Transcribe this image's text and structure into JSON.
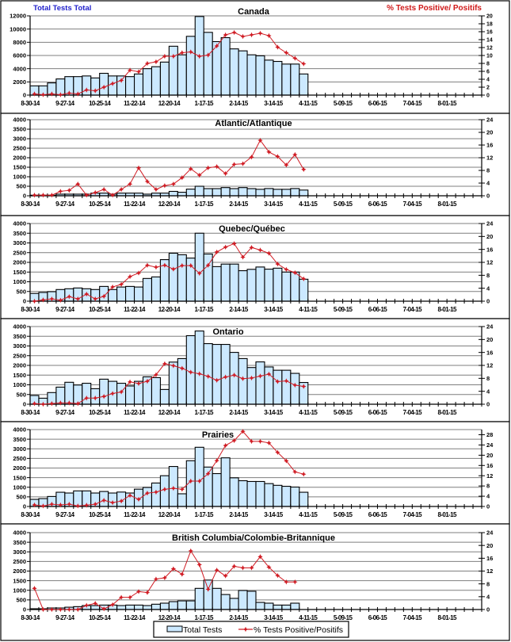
{
  "colors": {
    "bar_fill": "#CCE9FF",
    "bar_stroke": "#000000",
    "line": "#D01C24",
    "gridline": "#7F7F7F",
    "left_axis_title": "#1F1FCC",
    "right_axis_title": "#D01A1A"
  },
  "chart_data": [
    {
      "type": "bar+line",
      "title": "Canada",
      "y_left_label": "Total Tests Total",
      "y_right_label": "% Tests Positive/ Positifs",
      "x_tick_labels": [
        "8-30-14",
        "9-27-14",
        "10-25-14",
        "11-22-14",
        "12-20-14",
        "1-17-15",
        "2-14-15",
        "3-14-15",
        "4-11-15",
        "5-09-15",
        "6-06-15",
        "7-04-15",
        "8-01-15"
      ],
      "x_tick_label_step_weeks": 4,
      "xlim_weeks": [
        0,
        52
      ],
      "ylim_left": [
        0,
        12000
      ],
      "y_left_ticks": [
        0,
        2000,
        4000,
        6000,
        8000,
        10000,
        12000
      ],
      "ylim_right": [
        0,
        20
      ],
      "y_right_ticks": [
        0,
        2,
        4,
        6,
        8,
        10,
        12,
        14,
        16,
        18,
        20
      ],
      "grid": true,
      "series": [
        {
          "type": "bar",
          "axis": "left",
          "values": [
            1400,
            1400,
            1850,
            2450,
            2800,
            2800,
            2900,
            2600,
            3300,
            2900,
            2900,
            2800,
            3200,
            4000,
            4300,
            5000,
            7400,
            6100,
            8900,
            11900,
            9500,
            8100,
            8700,
            7000,
            6700,
            6100,
            5950,
            5300,
            5100,
            4700,
            4700,
            3200
          ]
        },
        {
          "type": "line",
          "axis": "right",
          "values": [
            0.3,
            0.1,
            0.3,
            0.1,
            0.5,
            0.3,
            1.3,
            1.1,
            2.0,
            2.9,
            3.7,
            6.3,
            5.9,
            8.0,
            8.4,
            9.8,
            9.8,
            10.7,
            10.9,
            9.8,
            10.1,
            12.4,
            15.2,
            15.8,
            14.8,
            15.2,
            15.6,
            15.0,
            12.1,
            10.7,
            9.3,
            7.9
          ]
        }
      ]
    },
    {
      "type": "bar+line",
      "title": "Atlantic/Atlantique",
      "x_tick_labels": [
        "8-30-14",
        "9-27-14",
        "10-25-14",
        "11-22-14",
        "12-20-14",
        "1-17-15",
        "2-14-15",
        "3-14-15",
        "4-11-15",
        "5-09-15",
        "6-06-15",
        "7-04-15",
        "8-01-15"
      ],
      "x_tick_label_step_weeks": 4,
      "xlim_weeks": [
        0,
        52
      ],
      "ylim_left": [
        0,
        4000
      ],
      "y_left_ticks": [
        0,
        500,
        1000,
        1500,
        2000,
        2500,
        3000,
        3500,
        4000
      ],
      "ylim_right": [
        0,
        24
      ],
      "y_right_ticks": [
        0,
        4,
        8,
        12,
        16,
        20,
        24
      ],
      "grid": true,
      "series": [
        {
          "type": "bar",
          "axis": "left",
          "values": [
            30,
            30,
            30,
            85,
            85,
            85,
            85,
            140,
            140,
            85,
            140,
            140,
            140,
            85,
            140,
            140,
            230,
            185,
            350,
            500,
            375,
            375,
            430,
            375,
            430,
            375,
            340,
            380,
            340,
            340,
            380,
            300
          ]
        },
        {
          "type": "line",
          "axis": "right",
          "values": [
            0.2,
            0.2,
            0.2,
            1.4,
            1.7,
            3.7,
            0.2,
            1.0,
            2.0,
            0.2,
            2.0,
            3.7,
            8.8,
            4.5,
            2.0,
            3.2,
            3.7,
            5.7,
            8.5,
            6.5,
            8.8,
            9.2,
            7.0,
            9.9,
            10.1,
            12.2,
            17.5,
            13.8,
            12.4,
            9.7,
            13.0,
            8.3
          ]
        }
      ]
    },
    {
      "type": "bar+line",
      "title": "Quebec/Québec",
      "x_tick_labels": [
        "8-30-14",
        "9-27-14",
        "10-25-14",
        "11-22-14",
        "12-20-14",
        "1-17-15",
        "2-14-15",
        "3-14-15",
        "4-11-15",
        "5-09-15",
        "6-06-15",
        "7-04-15",
        "8-01-15"
      ],
      "x_tick_label_step_weeks": 4,
      "xlim_weeks": [
        0,
        52
      ],
      "ylim_left": [
        0,
        4000
      ],
      "y_left_ticks": [
        0,
        500,
        1000,
        1500,
        2000,
        2500,
        3000,
        3500,
        4000
      ],
      "ylim_right": [
        0,
        24
      ],
      "y_right_ticks": [
        0,
        4,
        8,
        12,
        16,
        20,
        24
      ],
      "grid": true,
      "series": [
        {
          "type": "bar",
          "axis": "left",
          "values": [
            400,
            450,
            490,
            600,
            640,
            680,
            640,
            600,
            760,
            600,
            730,
            760,
            730,
            1170,
            1250,
            2140,
            2470,
            2390,
            2220,
            3500,
            2430,
            1780,
            1910,
            1910,
            1570,
            1640,
            1760,
            1650,
            1700,
            1500,
            1500,
            1130
          ]
        },
        {
          "type": "line",
          "axis": "right",
          "values": [
            0.0,
            0.4,
            0.7,
            0.3,
            1.4,
            0.7,
            2.2,
            0.7,
            1.5,
            4.4,
            5.2,
            7.6,
            8.7,
            11.1,
            10.5,
            11.1,
            9.9,
            11.0,
            11.0,
            8.6,
            11.1,
            15.2,
            16.7,
            17.8,
            13.6,
            16.6,
            15.8,
            14.8,
            11.5,
            9.8,
            8.8,
            6.9
          ]
        }
      ]
    },
    {
      "type": "bar+line",
      "title": "Ontario",
      "x_tick_labels": [
        "8-30-14",
        "9-27-14",
        "10-25-14",
        "11-22-14",
        "12-20-14",
        "1-17-15",
        "2-14-15",
        "3-14-15",
        "4-11-15",
        "5-09-15",
        "6-06-15",
        "7-04-15",
        "8-01-15"
      ],
      "x_tick_label_step_weeks": 4,
      "xlim_weeks": [
        0,
        52
      ],
      "ylim_left": [
        0,
        4000
      ],
      "y_left_ticks": [
        0,
        500,
        1000,
        1500,
        2000,
        2500,
        3000,
        3500,
        4000
      ],
      "ylim_right": [
        0,
        24
      ],
      "y_right_ticks": [
        0,
        4,
        8,
        12,
        16,
        20,
        24
      ],
      "grid": true,
      "series": [
        {
          "type": "bar",
          "axis": "left",
          "values": [
            450,
            310,
            600,
            880,
            1130,
            990,
            1080,
            800,
            1290,
            1180,
            1080,
            940,
            1180,
            1410,
            1370,
            760,
            2170,
            2350,
            3530,
            3770,
            3120,
            3080,
            3080,
            2670,
            2350,
            1890,
            2180,
            1920,
            1750,
            1750,
            1590,
            1120
          ]
        },
        {
          "type": "line",
          "axis": "right",
          "values": [
            0.2,
            0.0,
            0.2,
            0.4,
            0.4,
            0.2,
            1.9,
            1.9,
            2.4,
            3.3,
            3.8,
            6.9,
            6.4,
            7.1,
            9.1,
            12.5,
            11.9,
            11.1,
            9.9,
            9.4,
            8.6,
            7.4,
            8.4,
            9.0,
            7.9,
            8.1,
            8.7,
            9.3,
            7.0,
            7.2,
            5.9,
            5.5
          ]
        }
      ]
    },
    {
      "type": "bar+line",
      "title": "Prairies",
      "x_tick_labels": [
        "8-30-14",
        "9-27-14",
        "10-25-14",
        "11-22-14",
        "12-20-14",
        "1-17-15",
        "2-14-15",
        "3-14-15",
        "4-11-15",
        "5-09-15",
        "6-06-15",
        "7-04-15",
        "8-01-15"
      ],
      "x_tick_label_step_weeks": 4,
      "xlim_weeks": [
        0,
        52
      ],
      "ylim_left": [
        0,
        4000
      ],
      "y_left_ticks": [
        0,
        500,
        1000,
        1500,
        2000,
        2500,
        3000,
        3500,
        4000
      ],
      "ylim_right": [
        0,
        30
      ],
      "y_right_ticks": [
        0,
        4,
        8,
        12,
        16,
        20,
        24,
        28
      ],
      "grid": true,
      "series": [
        {
          "type": "bar",
          "axis": "left",
          "values": [
            370,
            410,
            520,
            740,
            700,
            810,
            810,
            700,
            780,
            700,
            750,
            700,
            900,
            990,
            1220,
            1600,
            2080,
            660,
            2380,
            3080,
            2050,
            1710,
            2530,
            1490,
            1340,
            1300,
            1300,
            1190,
            1100,
            1050,
            1010,
            740
          ]
        },
        {
          "type": "line",
          "axis": "right",
          "values": [
            0.6,
            0.2,
            0.9,
            0.6,
            0.9,
            0.2,
            0.5,
            0.9,
            2.4,
            1.5,
            2.1,
            4.3,
            2.8,
            5.2,
            5.6,
            6.7,
            7.1,
            6.7,
            9.9,
            9.9,
            12.8,
            17.9,
            23.8,
            25.7,
            29.3,
            25.4,
            25.4,
            24.8,
            21.1,
            17.8,
            13.5,
            12.6
          ]
        }
      ]
    },
    {
      "type": "bar+line",
      "title": "British Columbia/Colombie-Britannique",
      "x_tick_labels": [
        "8-30-14",
        "9-27-14",
        "10-25-14",
        "11-22-14",
        "12-20-14",
        "1-17-15",
        "2-14-15",
        "3-14-15",
        "4-11-15",
        "5-09-15",
        "6-06-15",
        "7-04-15",
        "8-01-15"
      ],
      "x_tick_label_step_weeks": 4,
      "xlim_weeks": [
        0,
        52
      ],
      "ylim_left": [
        0,
        4000
      ],
      "y_left_ticks": [
        0,
        500,
        1000,
        1500,
        2000,
        2500,
        3000,
        3500,
        4000
      ],
      "ylim_right": [
        0,
        24
      ],
      "y_right_ticks": [
        0,
        4,
        8,
        12,
        16,
        20,
        24
      ],
      "grid": true,
      "legend": {
        "position": "bottom",
        "items": [
          "Total Tests",
          "% Tests Positive/Positifs"
        ]
      },
      "series": [
        {
          "type": "bar",
          "axis": "left",
          "values": [
            40,
            40,
            80,
            80,
            120,
            150,
            205,
            205,
            230,
            230,
            205,
            230,
            230,
            205,
            275,
            330,
            410,
            450,
            450,
            1100,
            1530,
            1100,
            780,
            580,
            990,
            950,
            370,
            330,
            230,
            230,
            330
          ]
        },
        {
          "type": "line",
          "axis": "right",
          "values": [
            6.6,
            0.0,
            0.0,
            0.0,
            0.0,
            0.0,
            1.3,
            1.9,
            0.2,
            1.5,
            3.8,
            3.8,
            5.6,
            5.3,
            9.5,
            9.9,
            12.7,
            11.0,
            18.3,
            14.0,
            6.3,
            12.3,
            10.5,
            13.5,
            13.0,
            13.0,
            16.5,
            13.2,
            10.6,
            8.6,
            8.6
          ]
        }
      ]
    }
  ]
}
